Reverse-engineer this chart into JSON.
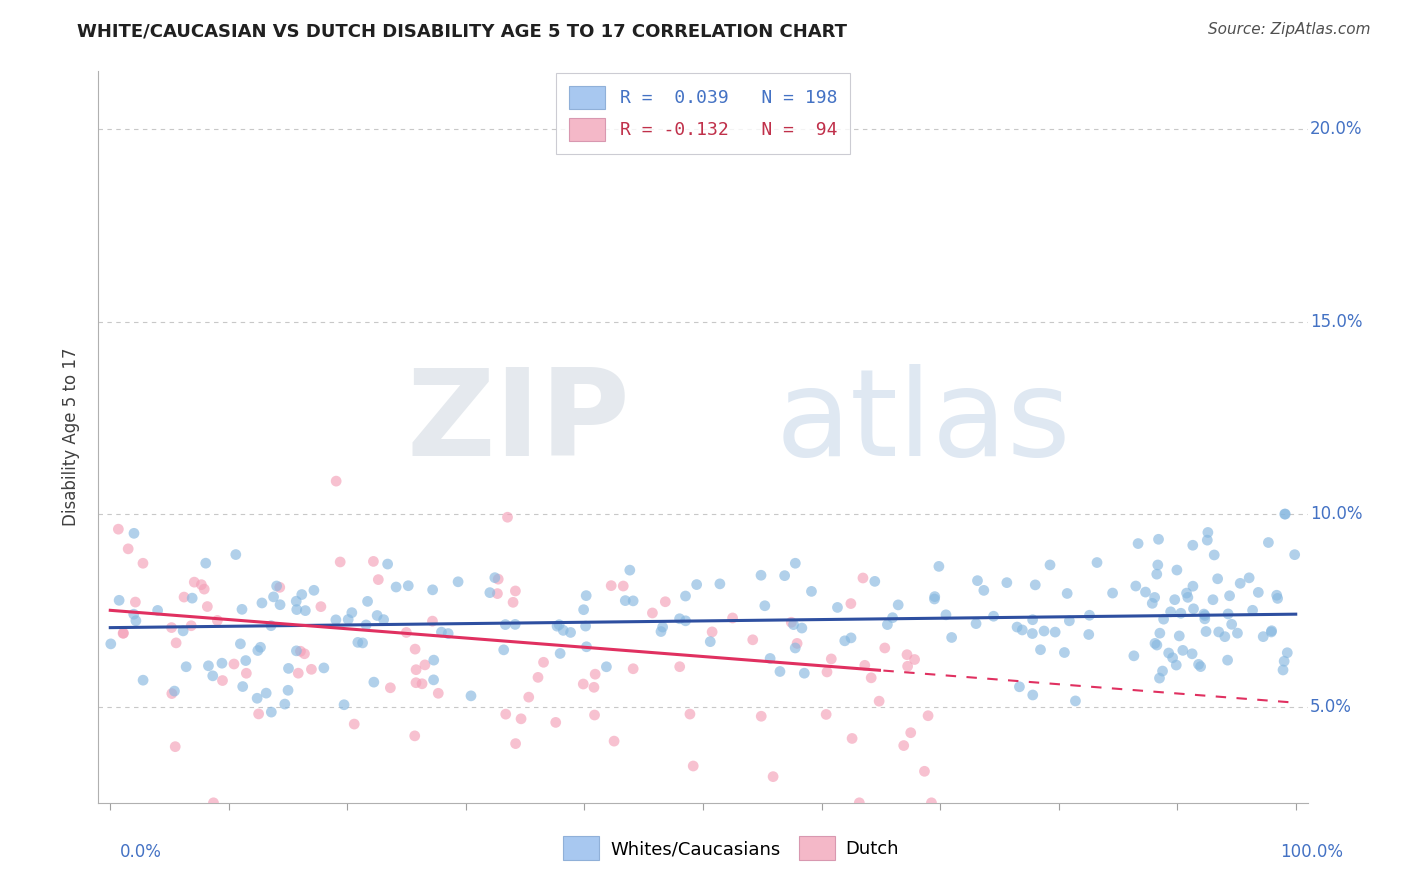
{
  "title": "WHITE/CAUCASIAN VS DUTCH DISABILITY AGE 5 TO 17 CORRELATION CHART",
  "source": "Source: ZipAtlas.com",
  "ylabel": "Disability Age 5 to 17",
  "watermark_zip": "ZIP",
  "watermark_atlas": "atlas",
  "yticks": [
    0.05,
    0.1,
    0.15,
    0.2
  ],
  "ytick_labels": [
    "5.0%",
    "10.0%",
    "15.0%",
    "20.0%"
  ],
  "xlim": [
    -1,
    101
  ],
  "ylim": [
    0.025,
    0.215
  ],
  "blue_color": "#87b8e0",
  "pink_color": "#f4a0b8",
  "blue_line_color": "#2e4fa0",
  "pink_line_color": "#e03060",
  "blue_R": 0.039,
  "blue_N": 198,
  "pink_R": -0.132,
  "pink_N": 94,
  "legend_blue_text": "R =  0.039   N = 198",
  "legend_pink_text": "R = -0.132   N =  94",
  "legend_text_color": "#4472c4",
  "legend_blue_patch": "#a8c8f0",
  "legend_pink_patch": "#f4b8c8",
  "bottom_legend_blue": "Whites/Caucasians",
  "bottom_legend_pink": "Dutch",
  "title_fontsize": 13,
  "source_fontsize": 11,
  "ylabel_fontsize": 12,
  "ytick_fontsize": 12,
  "legend_fontsize": 13,
  "scatter_size": 60,
  "scatter_alpha": 0.65
}
